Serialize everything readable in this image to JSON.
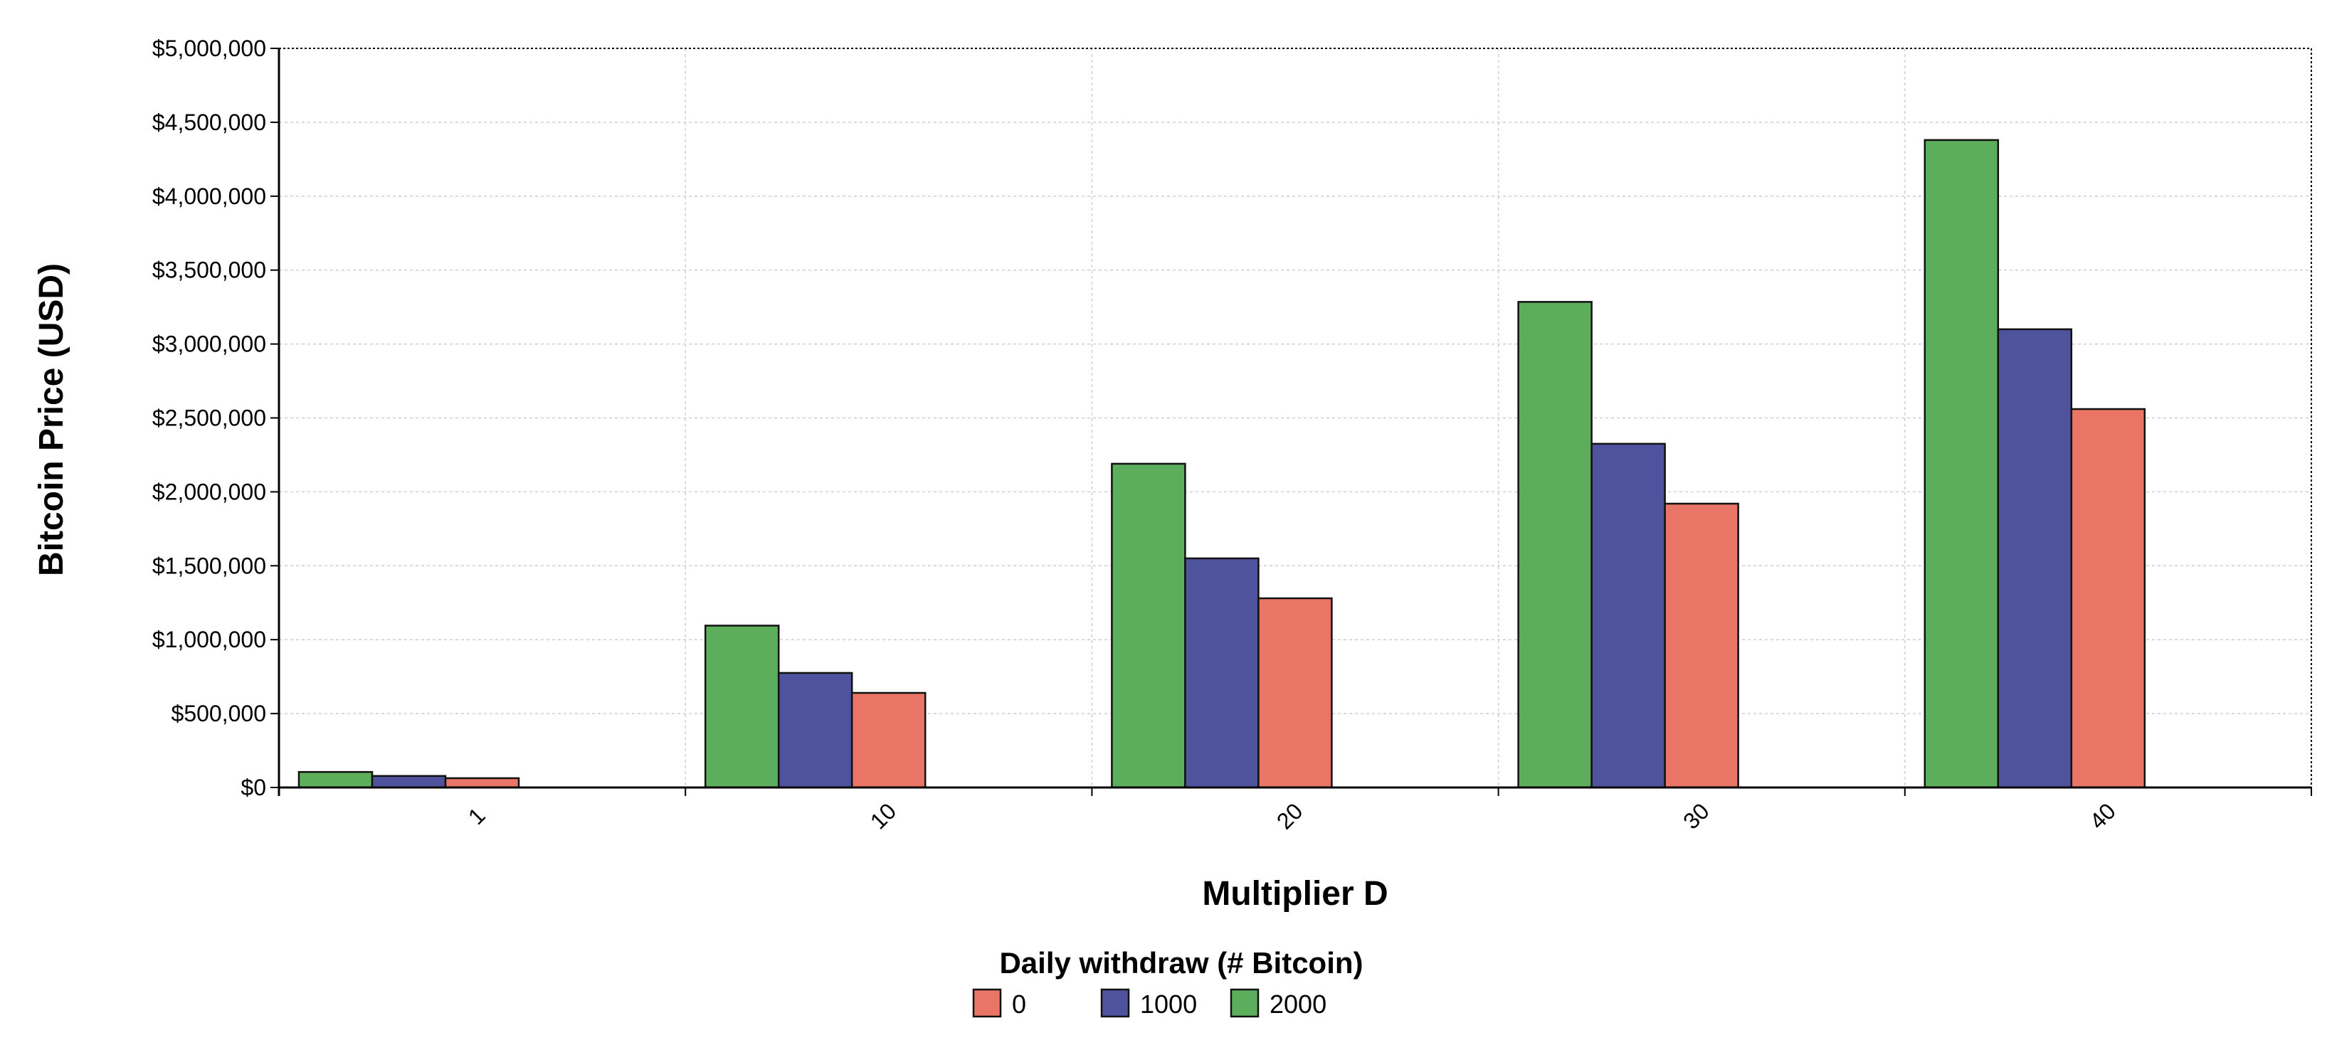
{
  "chart_data": {
    "type": "bar",
    "xlabel": "Multiplier D",
    "ylabel": "Bitcoin Price (USD)",
    "categories": [
      "1",
      "10",
      "20",
      "30",
      "40"
    ],
    "ylim": [
      0,
      5000000
    ],
    "yticks": [
      0,
      500000,
      1000000,
      1500000,
      2000000,
      2500000,
      3000000,
      3500000,
      4000000,
      4500000,
      5000000
    ],
    "ytick_labels": [
      "$0",
      "$500,000",
      "$1,000,000",
      "$1,500,000",
      "$2,000,000",
      "$2,500,000",
      "$3,000,000",
      "$3,500,000",
      "$4,000,000",
      "$4,500,000",
      "$5,000,000"
    ],
    "grid": true,
    "legend": {
      "title": "Daily withdraw (# Bitcoin)",
      "placement": "bottom-center",
      "entries": [
        "0",
        "1000",
        "2000"
      ]
    },
    "series": [
      {
        "name": "2000",
        "color": "#5cad5c",
        "values": [
          105000,
          1095000,
          2190000,
          3285000,
          4380000
        ]
      },
      {
        "name": "1000",
        "color": "#4f529c",
        "values": [
          78000,
          775000,
          1550000,
          2325000,
          3100000
        ]
      },
      {
        "name": "0",
        "color": "#e87565",
        "values": [
          63000,
          640000,
          1280000,
          1920000,
          2560000
        ]
      }
    ]
  }
}
